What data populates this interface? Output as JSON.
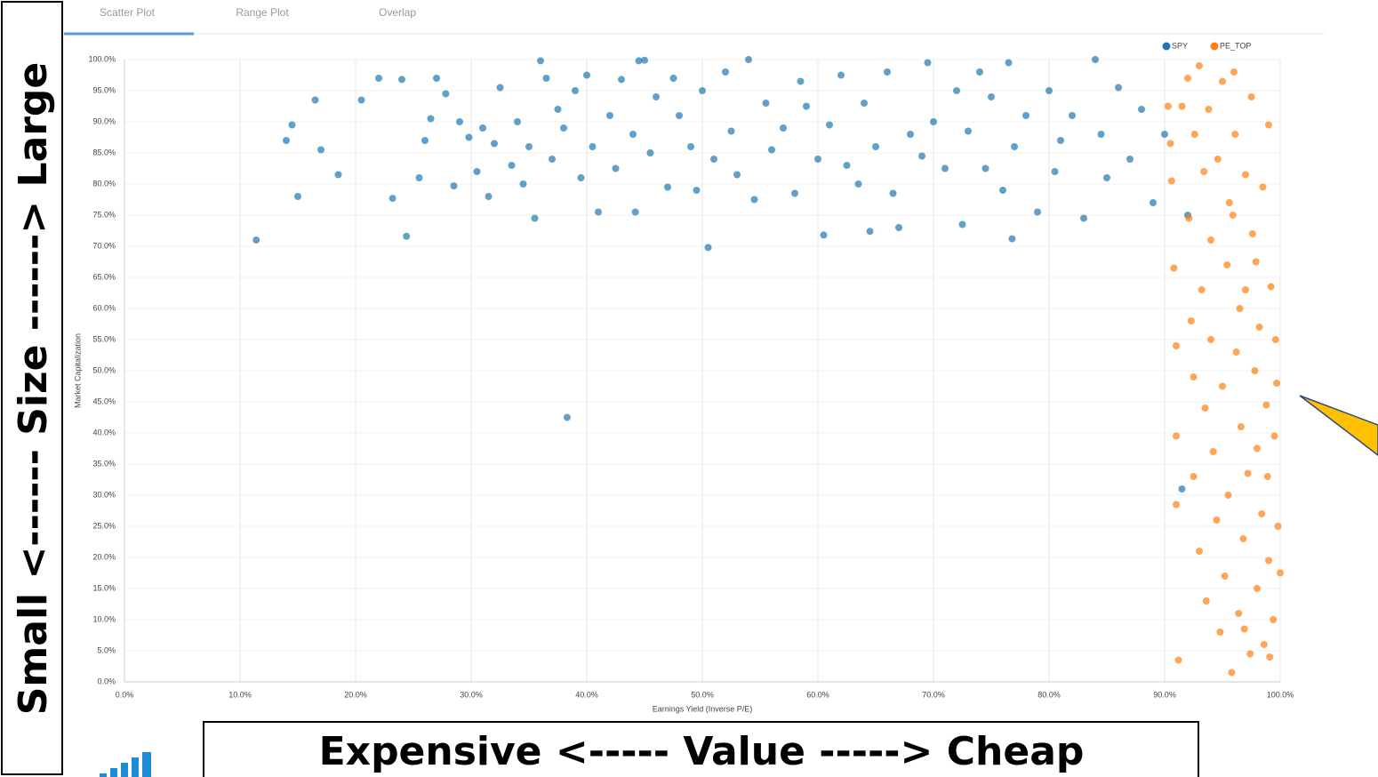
{
  "tabs": [
    "Scatter Plot",
    "Range Plot",
    "Overlap"
  ],
  "chart_data": {
    "type": "scatter",
    "xlabel": "Earnings Yield (Inverse P/E)",
    "ylabel": "Market Capitalization",
    "annotations": [
      "Small <------ Size ------> Large",
      "Expensive <----- Value -----> Cheap"
    ],
    "legend": "upper right",
    "grid": true,
    "xlim": [
      0,
      100
    ],
    "ylim": [
      0,
      100
    ],
    "xticks": [
      {
        "value": 0,
        "label": "0.0%"
      },
      {
        "value": 10,
        "label": "10.0%"
      },
      {
        "value": 20,
        "label": "20.0%"
      },
      {
        "value": 30,
        "label": "30.0%"
      },
      {
        "value": 40,
        "label": "40.0%"
      },
      {
        "value": 50,
        "label": "50.0%"
      },
      {
        "value": 60,
        "label": "60.0%"
      },
      {
        "value": 70,
        "label": "70.0%"
      },
      {
        "value": 80,
        "label": "80.0%"
      },
      {
        "value": 90,
        "label": "90.0%"
      },
      {
        "value": 100,
        "label": "100.0%"
      }
    ],
    "yticks": [
      {
        "value": 0,
        "label": "0.0%"
      },
      {
        "value": 5,
        "label": "5.0%"
      },
      {
        "value": 10,
        "label": "10.0%"
      },
      {
        "value": 15,
        "label": "15.0%"
      },
      {
        "value": 20,
        "label": "20.0%"
      },
      {
        "value": 25,
        "label": "25.0%"
      },
      {
        "value": 30,
        "label": "30.0%"
      },
      {
        "value": 35,
        "label": "35.0%"
      },
      {
        "value": 40,
        "label": "40.0%"
      },
      {
        "value": 45,
        "label": "45.0%"
      },
      {
        "value": 50,
        "label": "50.0%"
      },
      {
        "value": 55,
        "label": "55.0%"
      },
      {
        "value": 60,
        "label": "60.0%"
      },
      {
        "value": 65,
        "label": "65.0%"
      },
      {
        "value": 70,
        "label": "70.0%"
      },
      {
        "value": 75,
        "label": "75.0%"
      },
      {
        "value": 80,
        "label": "80.0%"
      },
      {
        "value": 85,
        "label": "85.0%"
      },
      {
        "value": 90,
        "label": "90.0%"
      },
      {
        "value": 95,
        "label": "95.0%"
      },
      {
        "value": 100,
        "label": "100.0%"
      }
    ],
    "series": [
      {
        "name": "SPY",
        "color": "#1f77b4",
        "x": [
          11.4,
          14,
          14.5,
          15,
          16.5,
          17,
          18.5,
          20.5,
          22,
          23.2,
          24,
          24.4,
          25.5,
          26,
          26.5,
          27,
          27.8,
          28.5,
          29,
          29.8,
          30.5,
          31,
          31.5,
          32,
          32.5,
          33.5,
          34,
          34.5,
          35,
          35.5,
          36,
          36.5,
          37,
          37.5,
          38,
          38.3,
          39,
          39.5,
          40,
          40.5,
          41,
          42,
          42.5,
          43,
          44,
          44.2,
          44.5,
          45,
          45.5,
          46,
          47,
          47.5,
          48,
          49,
          49.5,
          50,
          50.5,
          51,
          52,
          52.5,
          53,
          54,
          54.5,
          55.5,
          56,
          57,
          58,
          58.5,
          59,
          60,
          60.5,
          61,
          62,
          62.5,
          63.5,
          64,
          64.5,
          65,
          66,
          66.5,
          67,
          68,
          69,
          69.5,
          70,
          71,
          72,
          72.5,
          73,
          74,
          74.5,
          75,
          76,
          76.5,
          76.8,
          77,
          78,
          79,
          80,
          80.5,
          81,
          82,
          83,
          84,
          84.5,
          85,
          86,
          87,
          88,
          89,
          90,
          91.5,
          92
        ],
        "y": [
          71,
          87,
          89.5,
          78,
          93.5,
          85.5,
          81.5,
          93.5,
          97,
          77.7,
          96.8,
          71.6,
          81,
          87,
          90.5,
          97,
          94.5,
          79.7,
          90,
          87.5,
          82,
          89,
          78,
          86.5,
          95.5,
          83,
          90,
          80,
          86,
          74.5,
          99.8,
          97,
          84,
          92,
          89,
          42.5,
          95,
          81,
          97.5,
          86,
          75.5,
          91,
          82.5,
          96.8,
          88,
          75.5,
          99.8,
          99.9,
          85,
          94,
          79.5,
          97,
          91,
          86,
          79,
          95,
          69.8,
          84,
          98,
          88.5,
          81.5,
          100,
          77.5,
          93,
          85.5,
          89,
          78.5,
          96.5,
          92.5,
          84,
          71.8,
          89.5,
          97.5,
          83,
          80,
          93,
          72.4,
          86,
          98,
          78.5,
          73,
          88,
          84.5,
          99.5,
          90,
          82.5,
          95,
          73.5,
          88.5,
          98,
          82.5,
          94,
          79,
          99.5,
          71.2,
          86,
          91,
          75.5,
          95,
          82,
          87,
          91,
          74.5,
          100,
          88,
          81,
          95.5,
          84,
          92,
          77,
          88,
          31,
          75
        ]
      },
      {
        "name": "PE_TOP",
        "color": "#ff7f0e",
        "x": [
          90.3,
          90.5,
          90.6,
          90.8,
          91,
          91,
          91,
          91.2,
          91.5,
          92,
          92.1,
          92.3,
          92.5,
          92.5,
          92.6,
          93,
          93,
          93.2,
          93.4,
          93.5,
          93.6,
          93.8,
          94,
          94,
          94.2,
          94.5,
          94.6,
          94.8,
          95,
          95,
          95.2,
          95.4,
          95.5,
          95.6,
          95.8,
          96,
          96.1,
          96.2,
          96.4,
          96.5,
          96.6,
          96.8,
          97,
          97,
          97.2,
          97.4,
          97.5,
          97.6,
          97.8,
          98,
          98,
          98.2,
          98.4,
          98.5,
          98.6,
          98.8,
          99,
          99,
          99.2,
          99.4,
          99.5,
          99.6,
          99.8,
          100,
          99.7,
          99.1,
          98.9,
          97.9,
          96.9,
          95.9
        ],
        "y": [
          92.5,
          86.5,
          80.5,
          66.5,
          54,
          39.5,
          28.5,
          3.5,
          92.5,
          97,
          74.5,
          58,
          49,
          33,
          88,
          99,
          21,
          63,
          82,
          44,
          13,
          92,
          71,
          55,
          37,
          26,
          84,
          8,
          96.5,
          47.5,
          17,
          67,
          30,
          77,
          1.5,
          98,
          88,
          53,
          11,
          60,
          41,
          23,
          81.5,
          63,
          33.5,
          4.5,
          94,
          72,
          50,
          15,
          37.5,
          57,
          27,
          79.5,
          6,
          44.5,
          19.5,
          89.5,
          63.5,
          10,
          39.5,
          55,
          25,
          17.5,
          48,
          4,
          33,
          67.5,
          8.5,
          75
        ]
      }
    ]
  }
}
